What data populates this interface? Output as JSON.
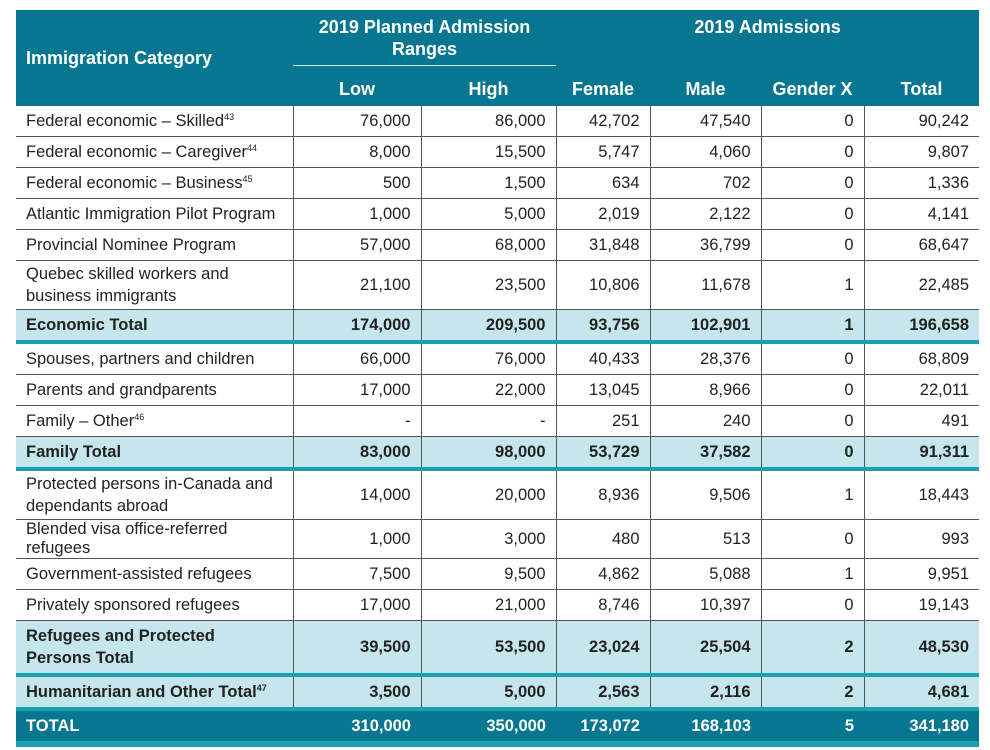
{
  "header": {
    "category": "Immigration Category",
    "planned_group": "2019 Planned Admission Ranges",
    "admissions_group": "2019 Admissions",
    "columns": [
      "Low",
      "High",
      "Female",
      "Male",
      "Gender X",
      "Total"
    ]
  },
  "rows": [
    {
      "label": "Federal economic – Skilled",
      "sup": "43",
      "type": "row",
      "values": [
        "76,000",
        "86,000",
        "42,702",
        "47,540",
        "0",
        "90,242"
      ]
    },
    {
      "label": "Federal economic – Caregiver",
      "sup": "44",
      "type": "row",
      "values": [
        "8,000",
        "15,500",
        "5,747",
        "4,060",
        "0",
        "9,807"
      ]
    },
    {
      "label": "Federal economic – Business",
      "sup": "45",
      "type": "row",
      "values": [
        "500",
        "1,500",
        "634",
        "702",
        "0",
        "1,336"
      ]
    },
    {
      "label": "Atlantic Immigration Pilot Program",
      "sup": "",
      "type": "row",
      "values": [
        "1,000",
        "5,000",
        "2,019",
        "2,122",
        "0",
        "4,141"
      ]
    },
    {
      "label": "Provincial Nominee Program",
      "sup": "",
      "type": "row",
      "values": [
        "57,000",
        "68,000",
        "31,848",
        "36,799",
        "0",
        "68,647"
      ]
    },
    {
      "label": "Quebec skilled workers and business immigrants",
      "sup": "",
      "type": "row two",
      "values": [
        "21,100",
        "23,500",
        "10,806",
        "11,678",
        "1",
        "22,485"
      ]
    },
    {
      "label": "Economic Total",
      "sup": "",
      "type": "sub",
      "values": [
        "174,000",
        "209,500",
        "93,756",
        "102,901",
        "1",
        "196,658"
      ]
    },
    {
      "label": "Spouses, partners and children",
      "sup": "",
      "type": "row",
      "values": [
        "66,000",
        "76,000",
        "40,433",
        "28,376",
        "0",
        "68,809"
      ]
    },
    {
      "label": "Parents and grandparents",
      "sup": "",
      "type": "row",
      "values": [
        "17,000",
        "22,000",
        "13,045",
        "8,966",
        "0",
        "22,011"
      ]
    },
    {
      "label": "Family – Other",
      "sup": "46",
      "type": "row",
      "values": [
        "-",
        "-",
        "251",
        "240",
        "0",
        "491"
      ]
    },
    {
      "label": "Family Total",
      "sup": "",
      "type": "sub",
      "values": [
        "83,000",
        "98,000",
        "53,729",
        "37,582",
        "0",
        "91,311"
      ]
    },
    {
      "label": "Protected persons in-Canada and dependants abroad",
      "sup": "",
      "type": "row two",
      "values": [
        "14,000",
        "20,000",
        "8,936",
        "9,506",
        "1",
        "18,443"
      ]
    },
    {
      "label": "Blended visa office-referred refugees",
      "sup": "",
      "type": "row",
      "values": [
        "1,000",
        "3,000",
        "480",
        "513",
        "0",
        "993"
      ]
    },
    {
      "label": "Government-assisted refugees",
      "sup": "",
      "type": "row",
      "values": [
        "7,500",
        "9,500",
        "4,862",
        "5,088",
        "1",
        "9,951"
      ]
    },
    {
      "label": "Privately sponsored refugees",
      "sup": "",
      "type": "row",
      "values": [
        "17,000",
        "21,000",
        "8,746",
        "10,397",
        "0",
        "19,143"
      ]
    },
    {
      "label": "Refugees and Protected Persons Total",
      "sup": "",
      "type": "sub two",
      "values": [
        "39,500",
        "53,500",
        "23,024",
        "25,504",
        "2",
        "48,530"
      ]
    },
    {
      "label": "Humanitarian and Other Total",
      "sup": "47",
      "type": "sub",
      "values": [
        "3,500",
        "5,000",
        "2,563",
        "2,116",
        "2",
        "4,681"
      ]
    },
    {
      "label": "TOTAL",
      "sup": "",
      "type": "total",
      "values": [
        "310,000",
        "350,000",
        "173,072",
        "168,103",
        "5",
        "341,180"
      ]
    }
  ],
  "colors": {
    "header_bg": "#077690",
    "subtotal_bg": "#c6e6ee",
    "accent_rule": "#19a1b2"
  }
}
